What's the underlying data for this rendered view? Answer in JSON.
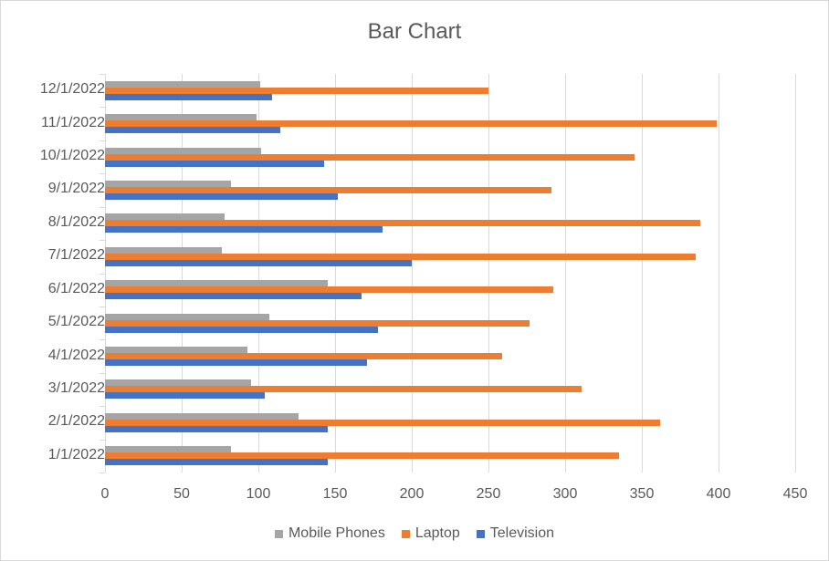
{
  "chart_data": {
    "type": "bar",
    "orientation": "horizontal",
    "title": "Bar Chart",
    "xlabel": "",
    "ylabel": "",
    "xlim": [
      0,
      450
    ],
    "xticks": [
      0,
      50,
      100,
      150,
      200,
      250,
      300,
      350,
      400,
      450
    ],
    "grid": true,
    "legend_position": "bottom",
    "categories": [
      "1/1/2022",
      "2/1/2022",
      "3/1/2022",
      "4/1/2022",
      "5/1/2022",
      "6/1/2022",
      "7/1/2022",
      "8/1/2022",
      "9/1/2022",
      "10/1/2022",
      "11/1/2022",
      "12/1/2022"
    ],
    "series": [
      {
        "name": "Television",
        "color": "#4472c4",
        "values": [
          145,
          145,
          104,
          171,
          178,
          167,
          200,
          181,
          152,
          143,
          114,
          109
        ]
      },
      {
        "name": "Laptop",
        "color": "#ed7d31",
        "values": [
          335,
          362,
          311,
          259,
          277,
          292,
          385,
          388,
          291,
          345,
          399,
          250
        ]
      },
      {
        "name": "Mobile Phones",
        "color": "#a5a5a5",
        "values": [
          82,
          126,
          95,
          93,
          107,
          145,
          76,
          78,
          82,
          102,
          99,
          101
        ]
      }
    ],
    "legend": [
      "Mobile Phones",
      "Laptop",
      "Television"
    ]
  }
}
